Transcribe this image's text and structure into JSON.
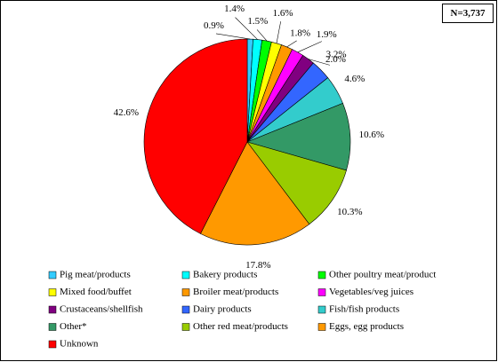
{
  "chart_data": {
    "type": "pie",
    "annotation": "N=3,737",
    "categories": [
      "Pig meat/products",
      "Bakery products",
      "Other poultry meat/product",
      "Mixed food/buffet",
      "Broiler meat/products",
      "Vegetables/veg juices",
      "Crustaceans/shellfish",
      "Dairy products",
      "Fish/fish products",
      "Other*",
      "Other red meat/products",
      "Eggs, egg products",
      "Unknown"
    ],
    "values": [
      0.9,
      1.4,
      1.5,
      1.6,
      1.8,
      1.9,
      2.0,
      3.2,
      4.6,
      10.6,
      10.3,
      17.8,
      42.6
    ],
    "value_labels": [
      "0.9%",
      "1.4%",
      "1.5%",
      "1.6%",
      "1.8%",
      "1.9%",
      "2.0%",
      "3.2%",
      "4.6%",
      "10.6%",
      "10.3%",
      "17.8%",
      "42.6%"
    ],
    "colors": [
      "#33CCFF",
      "#00FFFF",
      "#00FF00",
      "#FFFF00",
      "#FF9900",
      "#FF00FF",
      "#800080",
      "#3366FF",
      "#33CCCC",
      "#339966",
      "#99CC00",
      "#FF9900",
      "#FF0000"
    ]
  }
}
